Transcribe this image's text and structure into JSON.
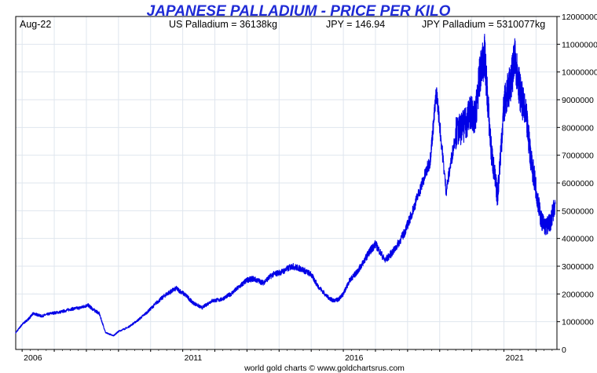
{
  "chart_data": {
    "type": "line",
    "title": "JAPANESE PALLADIUM - PRICE PER KILO",
    "header": {
      "date": "Aug-22",
      "us_palladium": "US Palladium = 36138kg",
      "jpy": "JPY = 146.94",
      "jpy_palladium": "JPY Palladium = 5310077kg"
    },
    "footer": "world gold charts © www.goldchartsrus.com",
    "xlim": [
      2005.8,
      2022.65
    ],
    "ylim": [
      0,
      12000000
    ],
    "x_ticks": [
      2006,
      2011,
      2016,
      2021
    ],
    "x_tick_labels": [
      "2006",
      "2011",
      "2016",
      "2021"
    ],
    "y_ticks": [
      0,
      1000000,
      2000000,
      3000000,
      4000000,
      5000000,
      6000000,
      7000000,
      8000000,
      9000000,
      10000000,
      11000000,
      12000000
    ],
    "y_tick_labels": [
      "0",
      "1000000",
      "2000000",
      "3000000",
      "4000000",
      "5000000",
      "6000000",
      "7000000",
      "8000000",
      "9000000",
      "10000000",
      "11000000",
      "12000000"
    ],
    "grid": true,
    "series": [
      {
        "color": "#0000e6",
        "x": [
          2005.8,
          2006.0,
          2006.2,
          2006.35,
          2006.6,
          2006.9,
          2007.2,
          2007.5,
          2007.8,
          2008.05,
          2008.2,
          2008.4,
          2008.6,
          2008.85,
          2009.0,
          2009.3,
          2009.6,
          2009.9,
          2010.2,
          2010.5,
          2010.8,
          2011.1,
          2011.3,
          2011.6,
          2011.9,
          2012.2,
          2012.5,
          2012.8,
          2013.0,
          2013.2,
          2013.5,
          2013.8,
          2014.1,
          2014.4,
          2014.7,
          2015.0,
          2015.2,
          2015.5,
          2015.7,
          2015.85,
          2016.0,
          2016.2,
          2016.4,
          2016.6,
          2016.8,
          2017.0,
          2017.3,
          2017.6,
          2017.9,
          2018.1,
          2018.4,
          2018.7,
          2018.9,
          2019.2,
          2019.5,
          2019.8,
          2019.95,
          2020.1,
          2020.25,
          2020.4,
          2020.6,
          2020.8,
          2021.0,
          2021.2,
          2021.35,
          2021.5,
          2021.7,
          2021.85,
          2022.0,
          2022.15,
          2022.3,
          2022.45,
          2022.6
        ],
        "y": [
          600000,
          900000,
          1100000,
          1300000,
          1200000,
          1300000,
          1350000,
          1450000,
          1500000,
          1600000,
          1450000,
          1300000,
          600000,
          500000,
          650000,
          800000,
          1050000,
          1350000,
          1700000,
          2000000,
          2200000,
          1950000,
          1700000,
          1500000,
          1750000,
          1800000,
          2000000,
          2300000,
          2500000,
          2550000,
          2400000,
          2700000,
          2800000,
          3000000,
          2900000,
          2700000,
          2300000,
          1900000,
          1750000,
          1800000,
          2000000,
          2500000,
          2750000,
          3100000,
          3500000,
          3800000,
          3200000,
          3600000,
          4200000,
          4800000,
          5800000,
          6800000,
          9300000,
          5700000,
          7800000,
          8100000,
          8600000,
          8300000,
          9900000,
          10600000,
          7200000,
          5500000,
          8800000,
          9600000,
          10500000,
          9300000,
          8300000,
          6800000,
          5800000,
          4700000,
          4400000,
          4600000,
          5300000
        ]
      }
    ]
  }
}
